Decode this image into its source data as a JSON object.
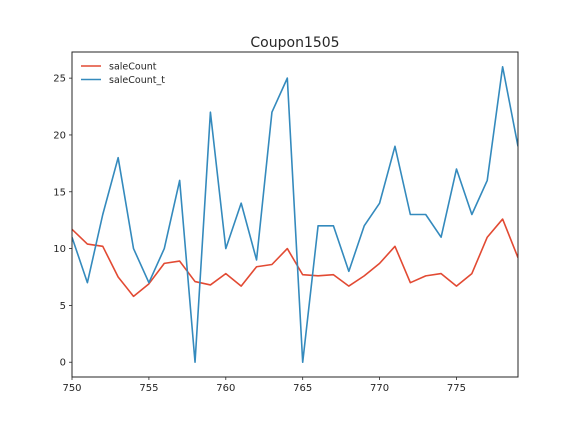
{
  "chart_data": {
    "type": "line",
    "title": "Coupon1505",
    "xlabel": "",
    "ylabel": "",
    "xlim": [
      750,
      779
    ],
    "ylim": [
      -1.3,
      27.3
    ],
    "xticks": [
      750,
      755,
      760,
      765,
      770,
      775
    ],
    "yticks": [
      0,
      5,
      10,
      15,
      20,
      25
    ],
    "grid": false,
    "legend_position": "upper-left",
    "x": [
      750,
      751,
      752,
      753,
      754,
      755,
      756,
      757,
      758,
      759,
      760,
      761,
      762,
      763,
      764,
      765,
      766,
      767,
      768,
      769,
      770,
      771,
      772,
      773,
      774,
      775,
      776,
      777,
      778,
      779
    ],
    "series": [
      {
        "name": "saleCount",
        "color": "#E24A33",
        "values": [
          11.7,
          10.4,
          10.2,
          7.5,
          5.8,
          6.9,
          8.7,
          8.9,
          7.1,
          6.8,
          7.8,
          6.7,
          8.4,
          8.6,
          10.0,
          7.7,
          7.6,
          7.7,
          6.7,
          7.6,
          8.7,
          10.2,
          7.0,
          7.6,
          7.8,
          6.7,
          7.8,
          11.0,
          12.6,
          9.2
        ]
      },
      {
        "name": "saleCount_t",
        "color": "#348ABD",
        "values": [
          11,
          7,
          13,
          18,
          10,
          7,
          10,
          16,
          0,
          22,
          10,
          14,
          9,
          22,
          25,
          0,
          12,
          12,
          8,
          12,
          14,
          19,
          13,
          13,
          11,
          17,
          13,
          16,
          26,
          19
        ]
      }
    ]
  }
}
